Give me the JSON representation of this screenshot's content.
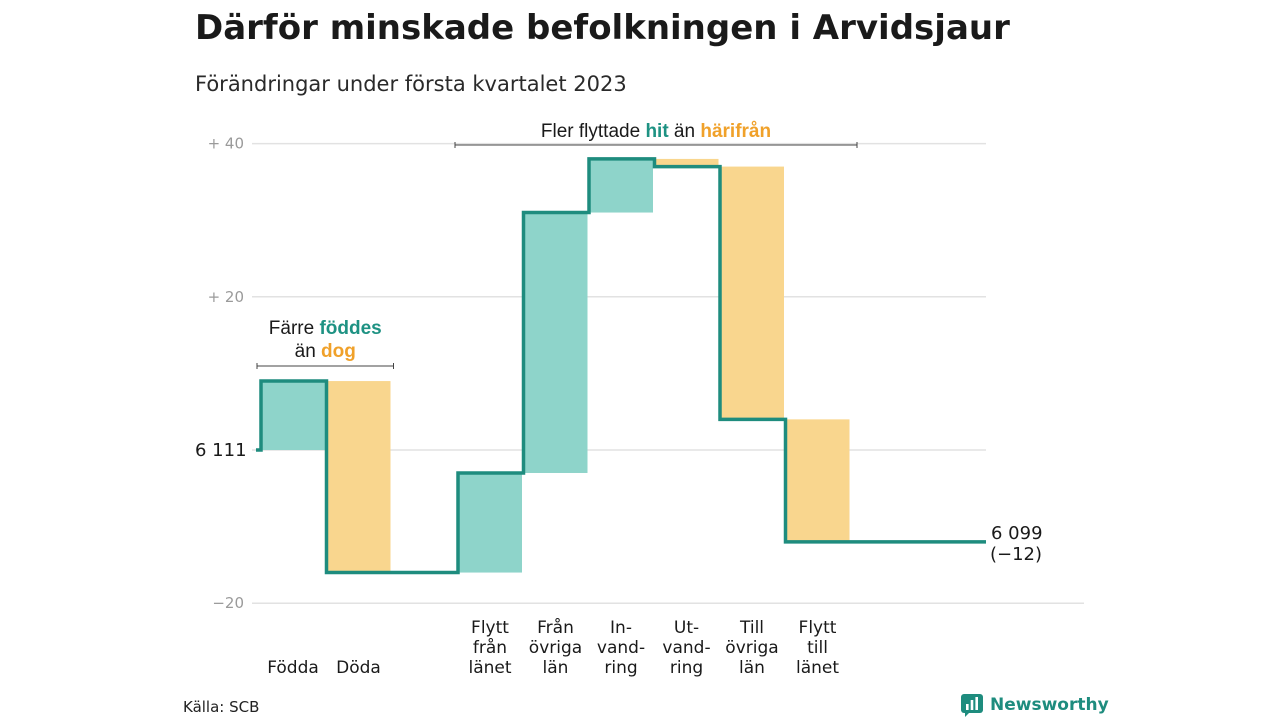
{
  "title": "Därför minskade befolkningen i Arvidsjaur",
  "subtitle": "Förändringar under första kvartalet 2023",
  "source": "Källa: SCB",
  "brand": "Newsworthy",
  "colors": {
    "positive": "#8ed4ca",
    "negative": "#f9d68e",
    "line": "#1e8c7e",
    "accent_pos": "#1e9283",
    "accent_neg": "#f0a12a",
    "grid": "#e2e2e2",
    "tick": "#9a9a9a"
  },
  "chart_data": {
    "type": "waterfall",
    "start_value": 6111,
    "start_label": "6 111",
    "end_value": 6099,
    "end_label": "6 099",
    "end_change_label": "(−12)",
    "y_ticks": [
      {
        "value": 40,
        "label": "+ 40"
      },
      {
        "value": 20,
        "label": "+ 20"
      },
      {
        "value": -20,
        "label": "−20"
      }
    ],
    "ylim": [
      -20,
      40
    ],
    "categories": [
      {
        "lines": [
          "Födda"
        ],
        "value": 9,
        "group": 0
      },
      {
        "lines": [
          "Döda"
        ],
        "value": -25,
        "group": 0
      },
      {
        "lines": [
          "Flytt",
          "från",
          "länet"
        ],
        "value": 13,
        "group": 1
      },
      {
        "lines": [
          "Från",
          "övriga",
          "län"
        ],
        "value": 34,
        "group": 1
      },
      {
        "lines": [
          "In-",
          "vand-",
          "ring"
        ],
        "value": 7,
        "group": 1
      },
      {
        "lines": [
          "Ut-",
          "vand-",
          "ring"
        ],
        "value": -1,
        "group": 1
      },
      {
        "lines": [
          "Till",
          "övriga",
          "län"
        ],
        "value": -33,
        "group": 1
      },
      {
        "lines": [
          "Flytt",
          "till",
          "länet"
        ],
        "value": -16,
        "group": 1
      }
    ],
    "annotations": [
      {
        "group": 0,
        "line1": {
          "pre": "Färre ",
          "em1": "föddes",
          "mid": "",
          "em2": "",
          "post": ""
        },
        "line2": {
          "pre": "än ",
          "em1": "",
          "mid": "",
          "em2": "dog",
          "post": ""
        }
      },
      {
        "group": 1,
        "line1": {
          "pre": "Fler flyttade ",
          "em1": "hit",
          "mid": " än ",
          "em2": "härifrån",
          "post": ""
        }
      }
    ]
  }
}
